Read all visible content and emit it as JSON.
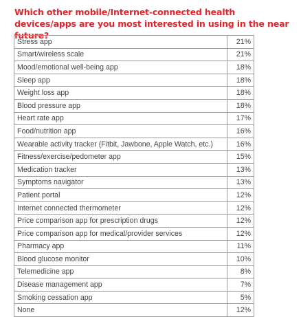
{
  "chart_data": {
    "type": "table",
    "title": "Which other mobile/Internet-connected health devices/apps are you most interested in using in the near future?",
    "rows": [
      {
        "label": "Stress app",
        "value": "21%"
      },
      {
        "label": "Smart/wireless scale",
        "value": "21%"
      },
      {
        "label": "Mood/emotional well-being app",
        "value": "18%"
      },
      {
        "label": "Sleep app",
        "value": "18%"
      },
      {
        "label": "Weight loss app",
        "value": "18%"
      },
      {
        "label": "Blood pressure app",
        "value": "18%"
      },
      {
        "label": "Heart rate app",
        "value": "17%"
      },
      {
        "label": "Food/nutrition app",
        "value": "16%"
      },
      {
        "label": "Wearable activity tracker (Fitbit, Jawbone, Apple Watch, etc.)",
        "value": "16%"
      },
      {
        "label": "Fitness/exercise/pedometer app",
        "value": "15%"
      },
      {
        "label": "Medication tracker",
        "value": "13%"
      },
      {
        "label": "Symptoms navigator",
        "value": "13%"
      },
      {
        "label": "Patient portal",
        "value": "12%"
      },
      {
        "label": "Internet connected thermometer",
        "value": "12%"
      },
      {
        "label": "Price comparison app for prescription drugs",
        "value": "12%"
      },
      {
        "label": "Price comparison app for medical/provider services",
        "value": "12%"
      },
      {
        "label": "Pharmacy app",
        "value": "11%"
      },
      {
        "label": "Blood glucose monitor",
        "value": "10%"
      },
      {
        "label": "Telemedicine app",
        "value": "8%"
      },
      {
        "label": "Disease management app",
        "value": "7%"
      },
      {
        "label": "Smoking cessation app",
        "value": "5%"
      },
      {
        "label": "None",
        "value": "12%"
      }
    ]
  }
}
